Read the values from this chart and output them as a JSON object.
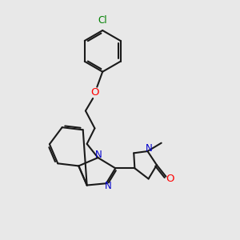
{
  "bg_color": "#e8e8e8",
  "bond_color": "#1a1a1a",
  "N_color": "#0000cc",
  "O_color": "#ff0000",
  "Cl_color": "#008000",
  "line_width": 1.5,
  "dbo": 0.035,
  "fs": 8.5,
  "fig_size": [
    3.0,
    3.0
  ],
  "dpi": 100,
  "xlim": [
    0.0,
    4.2
  ],
  "ylim": [
    -0.2,
    5.0
  ]
}
